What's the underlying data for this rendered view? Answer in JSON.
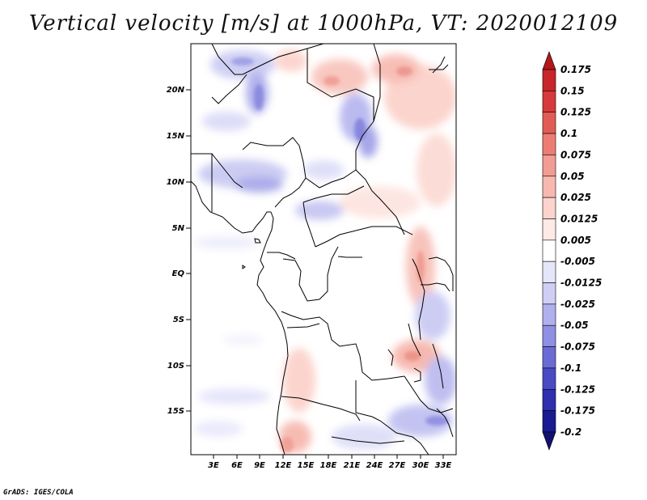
{
  "title": "Vertical velocity [m/s] at 1000hPa, VT: 2020012109",
  "credit": "GrADS: IGES/COLA",
  "map": {
    "lat_labels": [
      "20N",
      "15N",
      "10N",
      "5N",
      "EQ",
      "5S",
      "10S",
      "15S"
    ],
    "lon_labels": [
      "3E",
      "6E",
      "9E",
      "12E",
      "15E",
      "18E",
      "21E",
      "24E",
      "27E",
      "30E",
      "33E"
    ]
  },
  "colorbar": {
    "labels": [
      "0.175",
      "0.15",
      "0.125",
      "0.1",
      "0.075",
      "0.05",
      "0.025",
      "0.0125",
      "0.005",
      "-0.005",
      "-0.0125",
      "-0.025",
      "-0.05",
      "-0.075",
      "-0.1",
      "-0.125",
      "-0.175",
      "-0.2"
    ],
    "colors": [
      "#b2181b",
      "#c8262b",
      "#d73a3a",
      "#e35b55",
      "#ed7d74",
      "#f39c93",
      "#f8b8b0",
      "#fcd3cd",
      "#fdeae6",
      "#ffffff",
      "#e6e6fb",
      "#cfcff5",
      "#b0b0ee",
      "#8f8fe3",
      "#6b6bd6",
      "#4a4ac5",
      "#2f2fb0",
      "#1a1a92",
      "#12126e"
    ]
  }
}
